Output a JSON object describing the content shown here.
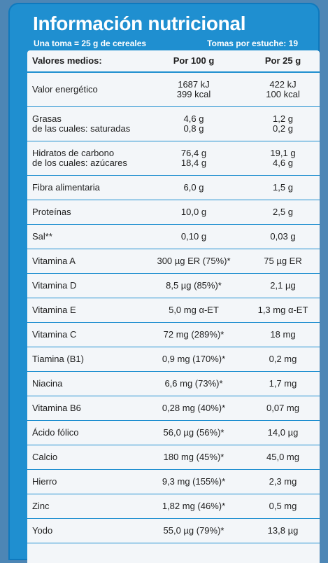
{
  "header": {
    "title": "Información nutricional",
    "serving": "Una toma = 25 g de cereales",
    "servings_per_pack": "Tomas por estuche: 19"
  },
  "table": {
    "columns": [
      "Valores medios:",
      "Por 100 g",
      "Por 25 g"
    ],
    "rows": [
      {
        "label": [
          "Valor energético"
        ],
        "per100": [
          "1687 kJ",
          "399 kcal"
        ],
        "per25": [
          "422 kJ",
          "100 kcal"
        ]
      },
      {
        "label": [
          "Grasas",
          "de las cuales: saturadas"
        ],
        "per100": [
          "4,6 g",
          "0,8 g"
        ],
        "per25": [
          "1,2 g",
          "0,2 g"
        ]
      },
      {
        "label": [
          "Hidratos de carbono",
          "de los cuales: azúcares"
        ],
        "per100": [
          "76,4 g",
          "18,4 g"
        ],
        "per25": [
          "19,1 g",
          "4,6 g"
        ]
      },
      {
        "label": [
          "Fibra alimentaria"
        ],
        "per100": [
          "6,0 g"
        ],
        "per25": [
          "1,5 g"
        ]
      },
      {
        "label": [
          "Proteínas"
        ],
        "per100": [
          "10,0 g"
        ],
        "per25": [
          "2,5 g"
        ]
      },
      {
        "label": [
          "Sal**"
        ],
        "per100": [
          "0,10 g"
        ],
        "per25": [
          "0,03 g"
        ]
      },
      {
        "label": [
          "Vitamina A"
        ],
        "per100": [
          "300 µg ER (75%)*"
        ],
        "per25": [
          "75 µg ER"
        ]
      },
      {
        "label": [
          "Vitamina D"
        ],
        "per100": [
          "8,5 µg (85%)*"
        ],
        "per25": [
          "2,1 µg"
        ]
      },
      {
        "label": [
          "Vitamina E"
        ],
        "per100": [
          "5,0 mg  α-ET"
        ],
        "per25": [
          "1,3 mg α-ET"
        ]
      },
      {
        "label": [
          "Vitamina C"
        ],
        "per100": [
          "72 mg (289%)*"
        ],
        "per25": [
          "18 mg"
        ]
      },
      {
        "label": [
          "Tiamina (B1)"
        ],
        "per100": [
          "0,9 mg (170%)*"
        ],
        "per25": [
          "0,2 mg"
        ]
      },
      {
        "label": [
          "Niacina"
        ],
        "per100": [
          "6,6 mg (73%)*"
        ],
        "per25": [
          "1,7 mg"
        ]
      },
      {
        "label": [
          "Vitamina B6"
        ],
        "per100": [
          "0,28 mg (40%)*"
        ],
        "per25": [
          "0,07 mg"
        ]
      },
      {
        "label": [
          "Ácido fólico"
        ],
        "per100": [
          "56,0 µg (56%)*"
        ],
        "per25": [
          "14,0 µg"
        ]
      },
      {
        "label": [
          "Calcio"
        ],
        "per100": [
          "180 mg (45%)*"
        ],
        "per25": [
          "45,0 mg"
        ]
      },
      {
        "label": [
          "Hierro"
        ],
        "per100": [
          "9,3 mg (155%)*"
        ],
        "per25": [
          "2,3 mg"
        ]
      },
      {
        "label": [
          "Zinc"
        ],
        "per100": [
          "1,82 mg (46%)*"
        ],
        "per25": [
          "0,5 mg"
        ]
      },
      {
        "label": [
          "Yodo"
        ],
        "per100": [
          "55,0 µg (79%)*"
        ],
        "per25": [
          "13,8 µg"
        ]
      }
    ]
  },
  "colors": {
    "panel_blue": "#1f8fd0",
    "background": "#4d86b5",
    "card": "#f3f6f9",
    "text": "#1f1f1f"
  }
}
